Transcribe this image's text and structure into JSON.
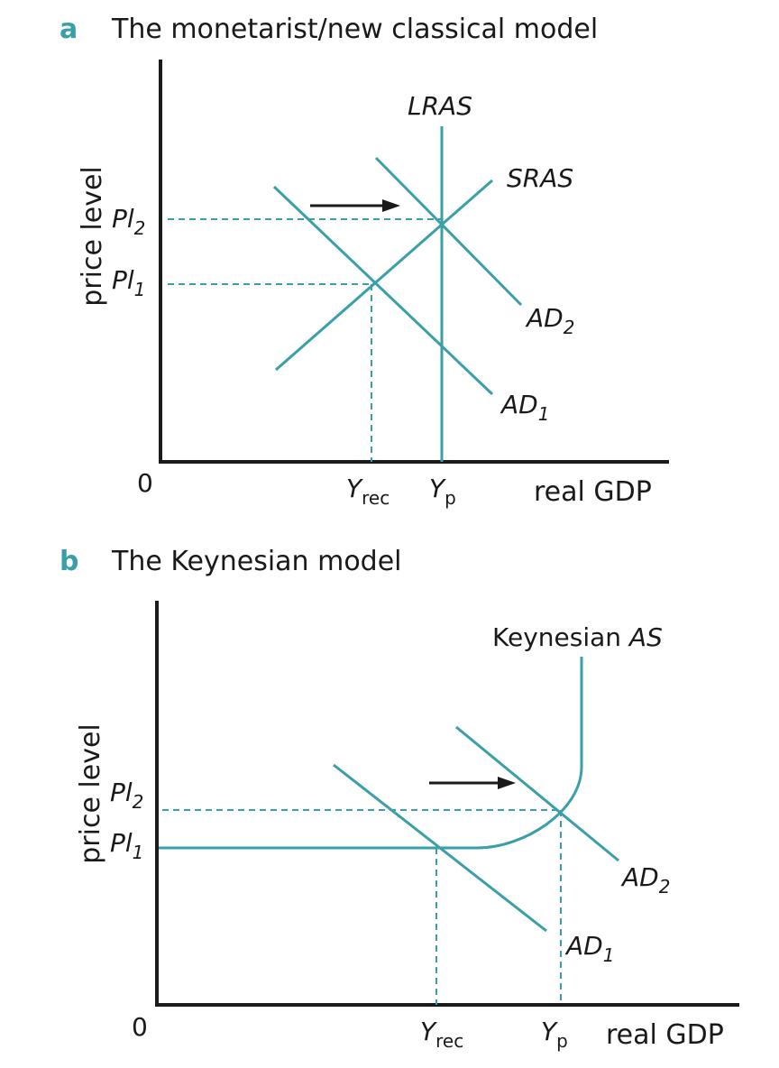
{
  "colors": {
    "accent": "#3a9fa8",
    "ink": "#1a1a1a"
  },
  "panel_a": {
    "letter": "a",
    "title": "The monetarist/new classical model",
    "y_axis_label": "price level",
    "x_axis_label": "real GDP",
    "origin": "0",
    "price_labels": [
      {
        "base": "Pl",
        "sub": "2"
      },
      {
        "base": "Pl",
        "sub": "1"
      }
    ],
    "output_labels": [
      {
        "base": "Y",
        "sub": "rec"
      },
      {
        "base": "Y",
        "sub": "p"
      }
    ],
    "curves": {
      "lras": "LRAS",
      "sras": "SRAS",
      "ad2": {
        "base": "AD",
        "sub": "2"
      },
      "ad1": {
        "base": "AD",
        "sub": "1"
      }
    }
  },
  "panel_b": {
    "letter": "b",
    "title": "The Keynesian model",
    "y_axis_label": "price level",
    "x_axis_label": "real GDP",
    "origin": "0",
    "price_labels": [
      {
        "base": "Pl",
        "sub": "2"
      },
      {
        "base": "Pl",
        "sub": "1"
      }
    ],
    "output_labels": [
      {
        "base": "Y",
        "sub": "rec"
      },
      {
        "base": "Y",
        "sub": "p"
      }
    ],
    "curves": {
      "keynesian_as": {
        "text": "Keynesian ",
        "italic": "AS"
      },
      "ad2": {
        "base": "AD",
        "sub": "2"
      },
      "ad1": {
        "base": "AD",
        "sub": "1"
      }
    }
  }
}
